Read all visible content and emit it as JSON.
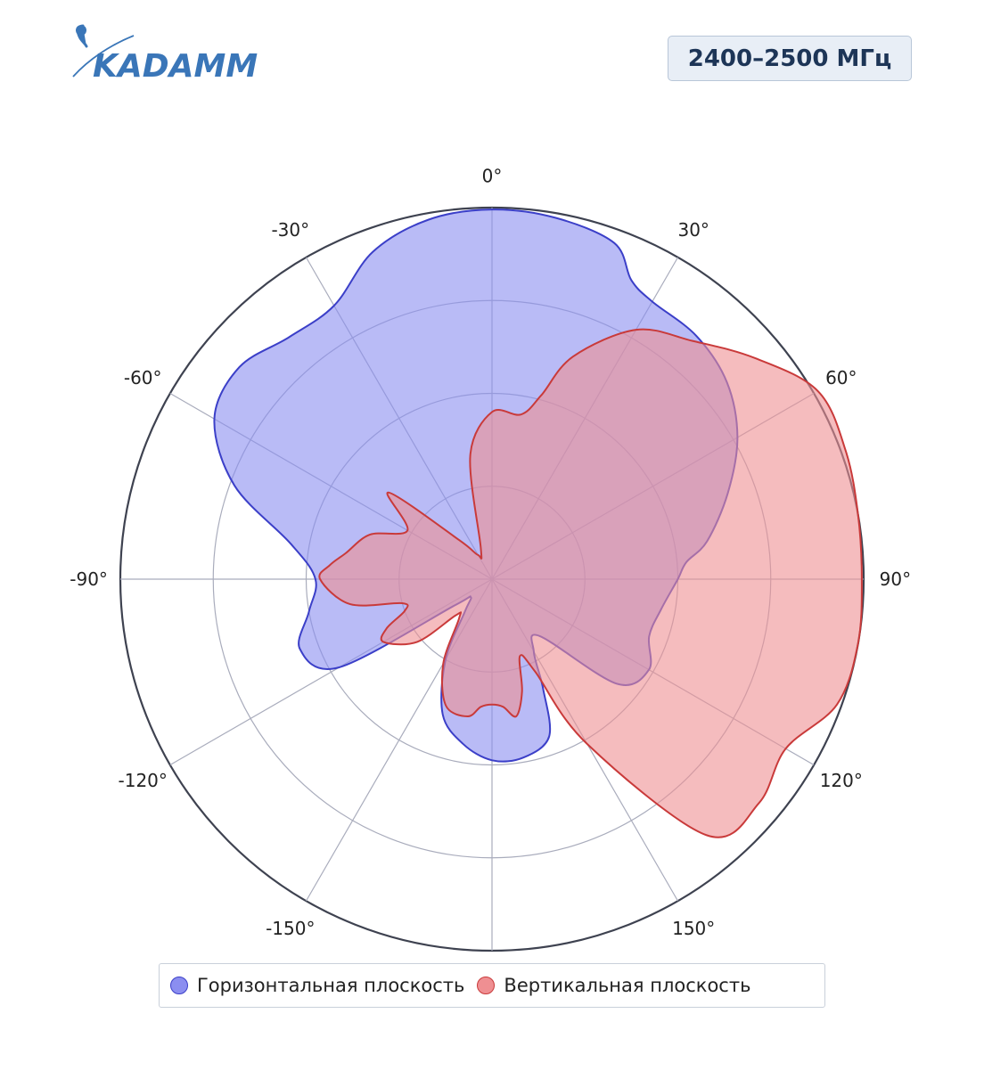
{
  "header": {
    "logo_text": "KADAMM",
    "frequency_badge": "2400–2500 МГц"
  },
  "colors": {
    "brand": "#3a76b8",
    "horizontal_fill": "#8b8ef0",
    "horizontal_line": "#3b3fc8",
    "vertical_fill": "#ef8f92",
    "vertical_line": "#c93a3a",
    "axis": "#3e4250",
    "grid": "#a9acbc",
    "badge_bg": "#e8eef6",
    "badge_text": "#1d3557"
  },
  "chart_data": {
    "type": "polar",
    "angular_direction": "clockwise",
    "zero_direction": "top",
    "angular_unit": "deg",
    "angular_ticks": [
      0,
      30,
      60,
      90,
      120,
      150,
      180,
      -150,
      -120,
      -90,
      -60,
      -30
    ],
    "angular_tick_labels": [
      "0°",
      "30°",
      "60°",
      "90°",
      "120°",
      "150°",
      "",
      "-150°",
      "-120°",
      "-90°",
      "-60°",
      "-30°"
    ],
    "radial_range": [
      0,
      4
    ],
    "radial_grid": [
      1,
      2,
      3,
      4
    ],
    "radial_tick_labels_visible": false,
    "grid": true,
    "legend_position": "bottom",
    "series": [
      {
        "name": "Горизонтальная плоскость",
        "color": "#3b3fc8",
        "fill": "#8b8ef0",
        "theta": [
          0,
          10,
          20,
          25,
          30,
          40,
          50,
          60,
          70,
          80,
          85,
          90,
          100,
          110,
          120,
          130,
          140,
          150,
          155,
          160,
          170,
          180,
          190,
          200,
          210,
          220,
          230,
          235,
          240,
          250,
          260,
          270,
          280,
          290,
          300,
          310,
          320,
          330,
          340,
          350
        ],
        "r": [
          3.98,
          3.95,
          3.85,
          3.55,
          3.45,
          3.42,
          3.3,
          3.05,
          2.7,
          2.35,
          2.1,
          2.0,
          1.85,
          1.8,
          1.95,
          1.75,
          0.8,
          0.9,
          1.3,
          1.8,
          1.95,
          1.95,
          1.8,
          1.55,
          1.0,
          0.45,
          0.3,
          0.5,
          1.9,
          2.2,
          2.0,
          1.9,
          2.2,
          2.95,
          3.45,
          3.55,
          3.4,
          3.4,
          3.75,
          3.93
        ]
      },
      {
        "name": "Вертикальная плоскость",
        "color": "#c93a3a",
        "fill": "#ef8f92",
        "theta": [
          0,
          10,
          15,
          20,
          30,
          40,
          50,
          60,
          70,
          80,
          90,
          100,
          110,
          120,
          130,
          140,
          150,
          155,
          160,
          165,
          170,
          175,
          180,
          185,
          190,
          200,
          210,
          220,
          225,
          230,
          240,
          245,
          250,
          255,
          260,
          270,
          275,
          280,
          290,
          300,
          310,
          320,
          330,
          340,
          350
        ],
        "r": [
          1.8,
          1.8,
          2.05,
          2.55,
          3.1,
          3.35,
          3.7,
          4.05,
          4.05,
          4.0,
          3.98,
          4.0,
          3.95,
          3.65,
          3.75,
          3.6,
          2.05,
          1.1,
          0.88,
          1.25,
          1.5,
          1.38,
          1.35,
          1.38,
          1.5,
          1.45,
          1.05,
          0.55,
          0.55,
          1.05,
          1.35,
          1.25,
          1.0,
          1.0,
          1.55,
          1.85,
          1.75,
          1.6,
          1.4,
          1.05,
          1.45,
          0.55,
          0.3,
          0.35,
          1.35
        ]
      }
    ]
  }
}
